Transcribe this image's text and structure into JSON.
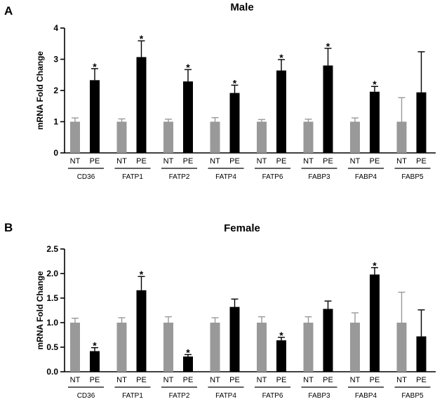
{
  "chart_data": [
    {
      "panel": "A",
      "type": "bar",
      "title": "Male",
      "ylabel": "mRNA Fold Change",
      "ylim": [
        0,
        4
      ],
      "yticks": [
        "0",
        "1",
        "2",
        "3",
        "4"
      ],
      "conditions": [
        "NT",
        "PE"
      ],
      "categories": [
        "CD36",
        "FATP1",
        "FATP2",
        "FATP4",
        "FATP6",
        "FABP3",
        "FABP4",
        "FABP5"
      ],
      "series": [
        {
          "name": "NT",
          "color": "#999999",
          "values": [
            1.0,
            1.0,
            1.0,
            1.0,
            1.0,
            1.0,
            1.0,
            1.0
          ],
          "errors": [
            0.12,
            0.09,
            0.08,
            0.13,
            0.07,
            0.08,
            0.12,
            0.77
          ]
        },
        {
          "name": "PE",
          "color": "#000000",
          "values": [
            2.33,
            3.07,
            2.29,
            1.92,
            2.64,
            2.8,
            1.96,
            1.94
          ],
          "errors": [
            0.37,
            0.52,
            0.38,
            0.25,
            0.35,
            0.55,
            0.17,
            1.3
          ]
        }
      ],
      "significance_marker": "*",
      "significant": [
        true,
        true,
        true,
        true,
        true,
        true,
        true,
        false
      ]
    },
    {
      "panel": "B",
      "type": "bar",
      "title": "Female",
      "ylabel": "mRNA Fold Change",
      "ylim": [
        0,
        2.5
      ],
      "yticks": [
        "0.0",
        "0.5",
        "1.0",
        "1.5",
        "2.0",
        "2.5"
      ],
      "conditions": [
        "NT",
        "PE"
      ],
      "categories": [
        "CD36",
        "FATP1",
        "FATP2",
        "FATP4",
        "FATP6",
        "FABP3",
        "FABP4",
        "FABP5"
      ],
      "series": [
        {
          "name": "NT",
          "color": "#999999",
          "values": [
            1.0,
            1.0,
            1.0,
            1.0,
            1.0,
            1.0,
            1.0,
            1.0
          ],
          "errors": [
            0.09,
            0.1,
            0.12,
            0.1,
            0.12,
            0.12,
            0.2,
            0.62
          ]
        },
        {
          "name": "PE",
          "color": "#000000",
          "values": [
            0.42,
            1.66,
            0.31,
            1.32,
            0.64,
            1.28,
            1.98,
            0.72
          ],
          "errors": [
            0.07,
            0.28,
            0.04,
            0.16,
            0.06,
            0.16,
            0.14,
            0.54
          ]
        }
      ],
      "significance_marker": "*",
      "significant": [
        true,
        true,
        true,
        false,
        true,
        false,
        true,
        false
      ]
    }
  ]
}
